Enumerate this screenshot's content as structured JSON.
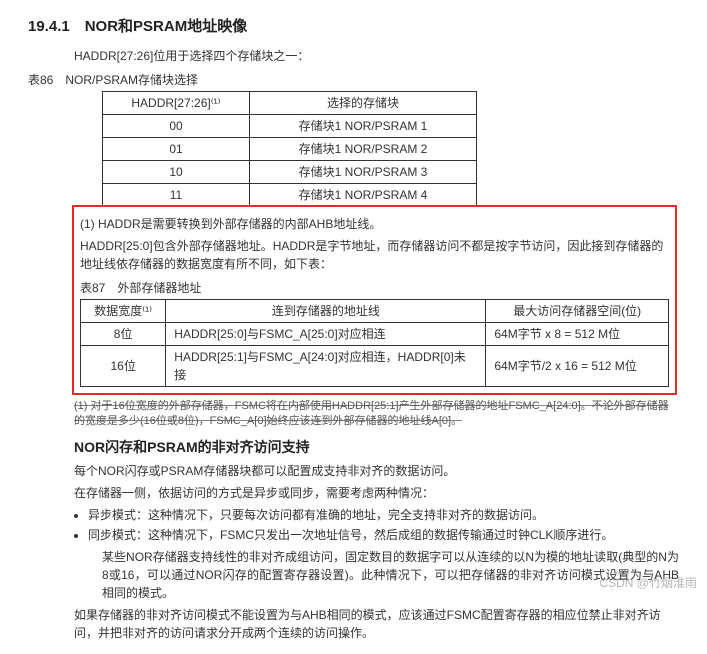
{
  "section_heading": "19.4.1　NOR和PSRAM地址映像",
  "intro": "HADDR[27:26]位用于选择四个存储块之一：",
  "table86_caption": "表86　NOR/PSRAM存储块选择",
  "table86": {
    "columns": [
      "HADDR[27:26]⁽¹⁾",
      "选择的存储块"
    ],
    "rows": [
      [
        "00",
        "存储块1 NOR/PSRAM 1"
      ],
      [
        "01",
        "存储块1 NOR/PSRAM 2"
      ],
      [
        "10",
        "存储块1 NOR/PSRAM 3"
      ],
      [
        "11",
        "存储块1 NOR/PSRAM 4"
      ]
    ],
    "col_widths": [
      "130px",
      "210px"
    ]
  },
  "note1": "(1) HADDR是需要转换到外部存储器的内部AHB地址线。",
  "note2": "HADDR[25:0]包含外部存储器地址。HADDR是字节地址，而存储器访问不都是按字节访问，因此接到存储器的地址线依存储器的数据宽度有所不同，如下表：",
  "table87_caption": "表87　外部存储器地址",
  "table87": {
    "columns": [
      "数据宽度⁽¹⁾",
      "连到存储器的地址线",
      "最大访问存储器空间(位)"
    ],
    "rows": [
      [
        "8位",
        "HADDR[25:0]与FSMC_A[25:0]对应相连",
        "64M字节 x 8 = 512 M位"
      ],
      [
        "16位",
        "HADDR[25:1]与FSMC_A[24:0]对应相连，HADDR[0]未接",
        "64M字节/2 x 16 = 512 M位"
      ]
    ],
    "col_widths": [
      "70px",
      "310px",
      "170px"
    ]
  },
  "strikethrough": "(1) 对于16位宽度的外部存储器，FSMC将在内部使用HADDR[25:1]产生外部存储器的地址FSMC_A[24:0]。不论外部存储器的宽度是多少(16位或8位)，FSMC_A[0]始终应该连到外部存储器的地址线A[0]。",
  "sub_heading": "NOR闪存和PSRAM的非对齐访问支持",
  "p1": "每个NOR闪存或PSRAM存储器块都可以配置成支持非对齐的数据访问。",
  "p2": "在存储器一侧，依据访问的方式是异步或同步，需要考虑两种情况：",
  "li1": "异步模式：这种情况下，只要每次访问都有准确的地址，完全支持非对齐的数据访问。",
  "li2": "同步模式：这种情况下，FSMC只发出一次地址信号，然后成组的数据传输通过时钟CLK顺序进行。",
  "sub_para": "某些NOR存储器支持线性的非对齐成组访问，固定数目的数据字可以从连续的以N为模的地址读取(典型的N为8或16，可以通过NOR闪存的配置寄存器设置)。此种情况下，可以把存储器的非对齐访问模式设置为与AHB相同的模式。",
  "p3": "如果存储器的非对齐访问模式不能设置为与AHB相同的模式，应该通过FSMC配置寄存器的相应位禁止非对齐访问，并把非对齐的访问请求分开成两个连续的访问操作。",
  "watermark": "CSDN @竹烟淮雨"
}
